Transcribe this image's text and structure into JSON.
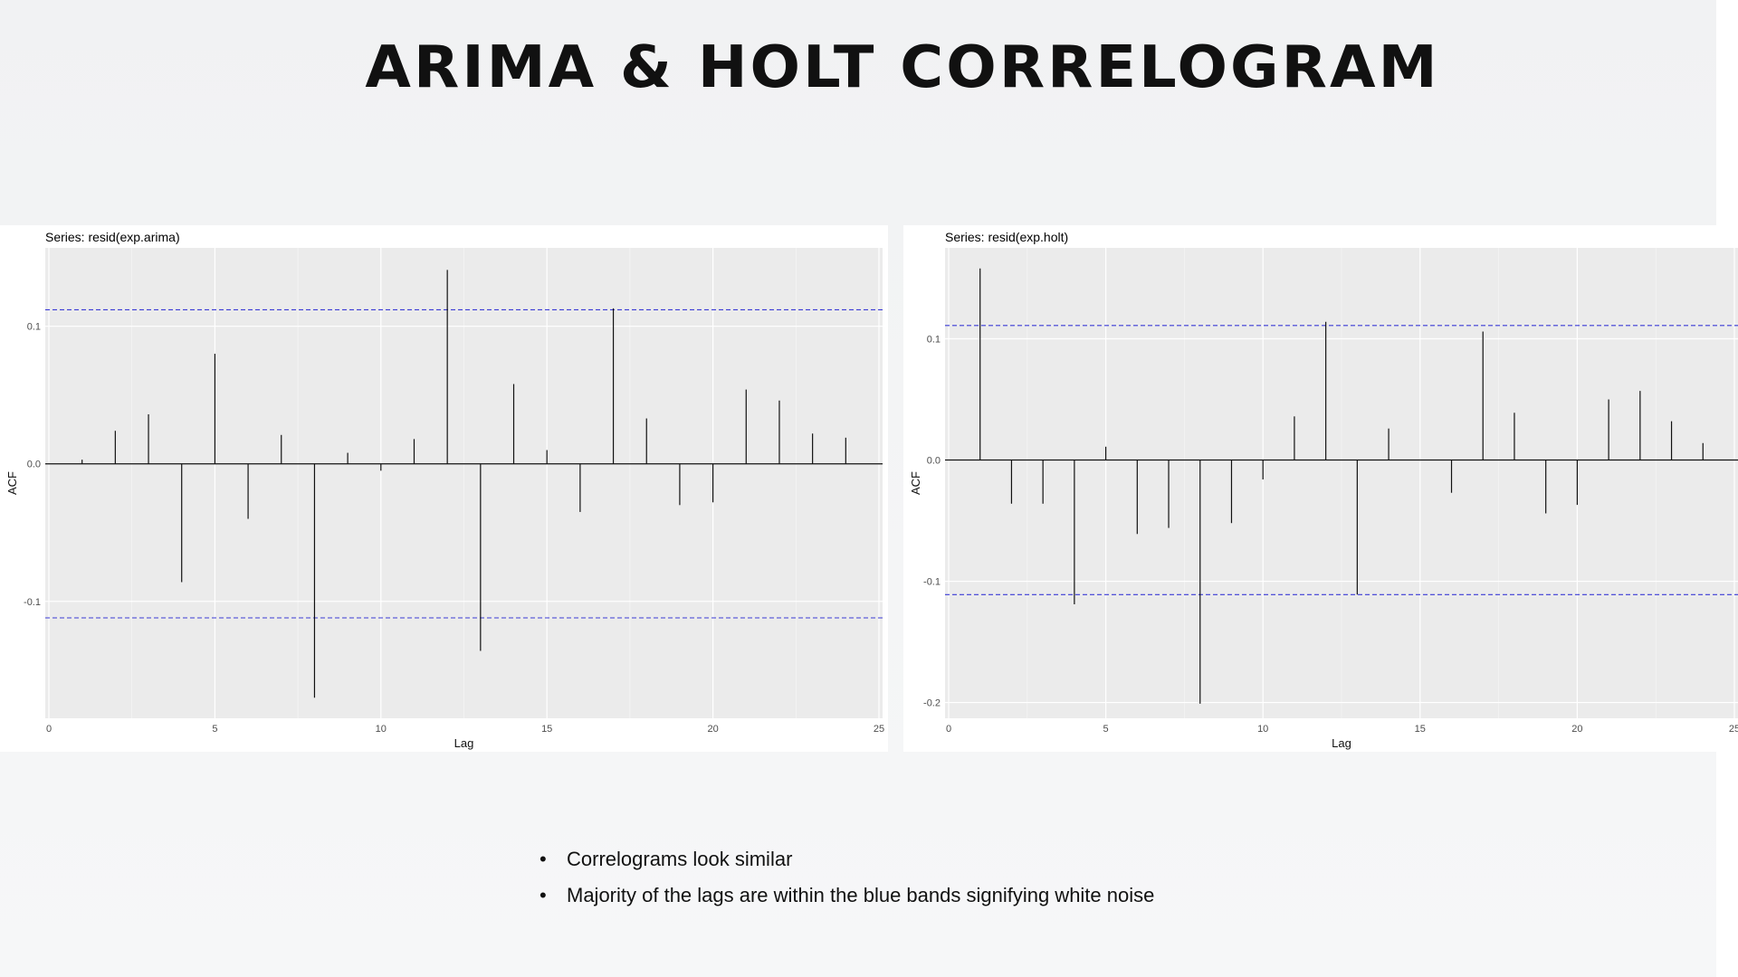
{
  "title": "ARIMA & HOLT CORRELOGRAM",
  "bullets": [
    "Correlograms look similar",
    "Majority of the lags are within the blue bands signifying white noise"
  ],
  "colors": {
    "ci_line": "#3b3bd6",
    "panel_bg": "#ebebeb",
    "grid": "#ffffff",
    "bar": "#111111"
  },
  "chart_data": [
    {
      "type": "bar",
      "title": "Series: resid(exp.arima)",
      "xlabel": "Lag",
      "ylabel": "ACF",
      "xlim": [
        0,
        25
      ],
      "ylim": [
        -0.185,
        0.157
      ],
      "x_ticks": [
        "0",
        "5",
        "10",
        "15",
        "20",
        "25"
      ],
      "y_ticks": [
        "-0.1",
        "0.0",
        "0.1"
      ],
      "ci": 0.112,
      "lags": [
        1,
        2,
        3,
        4,
        5,
        6,
        7,
        8,
        9,
        10,
        11,
        12,
        13,
        14,
        15,
        16,
        17,
        18,
        19,
        20,
        21,
        22,
        23,
        24
      ],
      "values": [
        0.003,
        0.024,
        0.036,
        -0.086,
        0.08,
        -0.04,
        0.021,
        -0.17,
        0.008,
        -0.005,
        0.018,
        0.141,
        -0.136,
        0.058,
        0.01,
        -0.035,
        0.113,
        0.033,
        -0.03,
        -0.028,
        0.054,
        0.046,
        0.022,
        0.019
      ],
      "grid": true
    },
    {
      "type": "bar",
      "title": "Series: resid(exp.holt)",
      "xlabel": "Lag",
      "ylabel": "ACF",
      "xlim": [
        0,
        25
      ],
      "ylim": [
        -0.213,
        0.175
      ],
      "x_ticks": [
        "0",
        "5",
        "10",
        "15",
        "20",
        "25"
      ],
      "y_ticks": [
        "-0.2",
        "-0.1",
        "0.0",
        "0.1"
      ],
      "ci": 0.111,
      "lags": [
        1,
        2,
        3,
        4,
        5,
        6,
        7,
        8,
        9,
        10,
        11,
        12,
        13,
        14,
        15,
        16,
        17,
        18,
        19,
        20,
        21,
        22,
        23,
        24
      ],
      "values": [
        0.158,
        -0.036,
        -0.036,
        -0.119,
        0.011,
        -0.061,
        -0.056,
        -0.201,
        -0.052,
        -0.016,
        0.036,
        0.114,
        -0.111,
        0.026,
        0.0,
        -0.027,
        0.106,
        0.039,
        -0.044,
        -0.037,
        0.05,
        0.057,
        0.032,
        0.014
      ],
      "grid": true
    }
  ]
}
